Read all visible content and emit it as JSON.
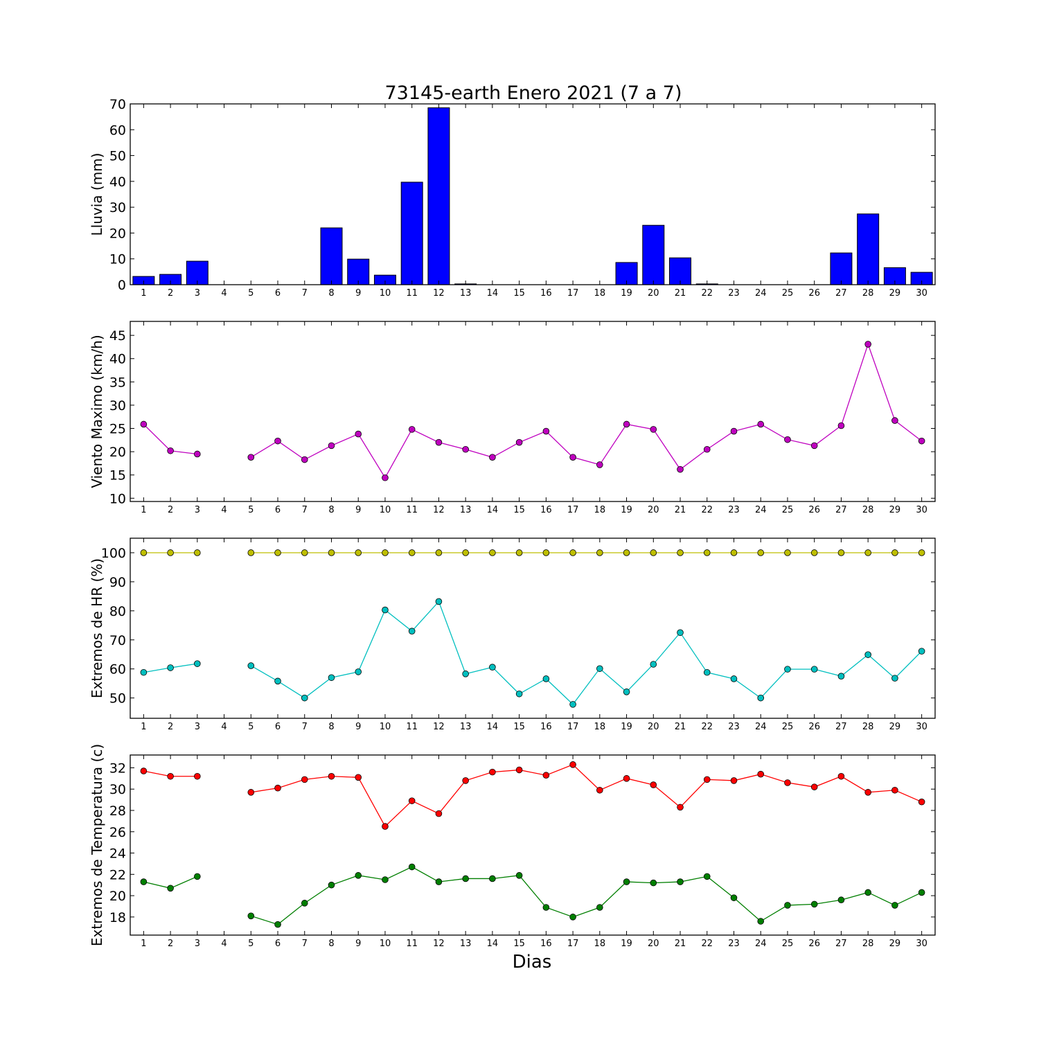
{
  "chart_data": {
    "type": "multi-panel",
    "title": "73145-earth Enero 2021  (7 a 7)",
    "xlabel": "Dias",
    "days": [
      1,
      2,
      3,
      4,
      5,
      6,
      7,
      8,
      9,
      10,
      11,
      12,
      13,
      14,
      15,
      16,
      17,
      18,
      19,
      20,
      21,
      22,
      23,
      24,
      25,
      26,
      27,
      28,
      29,
      30
    ],
    "panels": [
      {
        "type": "bar",
        "ylabel": "Lluvia (mm)",
        "ylim": [
          0,
          70
        ],
        "yticks": [
          0,
          10,
          20,
          30,
          40,
          50,
          60,
          70
        ],
        "series": [
          {
            "color": "#0000ff",
            "values": [
              3.2,
              4.0,
              9.1,
              0,
              0,
              0,
              0,
              22.0,
              9.9,
              3.7,
              39.7,
              68.5,
              0.3,
              0,
              0,
              0,
              0,
              0,
              8.6,
              23.0,
              10.4,
              0.3,
              0,
              0,
              0,
              0,
              12.3,
              27.4,
              6.6,
              4.8
            ]
          }
        ]
      },
      {
        "type": "line",
        "ylabel": "Viento Maximo (km/h)",
        "ylim": [
          9.3,
          48.0
        ],
        "yticks": [
          10,
          15,
          20,
          25,
          30,
          35,
          40,
          45
        ],
        "series": [
          {
            "color": "#bf00bf",
            "values": [
              25.9,
              20.2,
              19.5,
              null,
              18.8,
              22.3,
              18.3,
              21.3,
              23.8,
              14.4,
              24.8,
              22.0,
              20.5,
              18.8,
              22.0,
              24.4,
              18.8,
              17.2,
              25.9,
              24.8,
              16.2,
              20.5,
              24.4,
              25.9,
              22.6,
              21.3,
              25.6,
              43.1,
              26.7,
              22.3
            ]
          }
        ]
      },
      {
        "type": "line",
        "ylabel": "Extremos de HR (%)",
        "ylim": [
          43.0,
          105.0
        ],
        "yticks": [
          50,
          60,
          70,
          80,
          90,
          100
        ],
        "series": [
          {
            "color": "#bfbf00",
            "values": [
              100,
              100,
              100,
              null,
              100,
              100,
              100,
              100,
              100,
              100,
              100,
              100,
              100,
              100,
              100,
              100,
              100,
              100,
              100,
              100,
              100,
              100,
              100,
              100,
              100,
              100,
              100,
              100,
              100,
              100
            ]
          },
          {
            "color": "#00bfbf",
            "values": [
              58.8,
              60.4,
              61.8,
              null,
              61.1,
              55.8,
              50.0,
              57.0,
              59.0,
              80.3,
              73.0,
              83.2,
              58.3,
              60.6,
              51.4,
              56.6,
              47.8,
              60.1,
              52.1,
              61.6,
              72.5,
              58.8,
              56.6,
              50.0,
              59.9,
              59.9,
              57.5,
              64.9,
              56.8,
              66.1
            ]
          }
        ]
      },
      {
        "type": "line",
        "ylabel": "Extremos de Temperatura (c)",
        "ylim": [
          16.3,
          33.2
        ],
        "yticks": [
          18,
          20,
          22,
          24,
          26,
          28,
          30,
          32
        ],
        "series": [
          {
            "color": "#ff0000",
            "values": [
              31.7,
              31.2,
              31.2,
              null,
              29.7,
              30.1,
              30.9,
              31.2,
              31.1,
              26.5,
              28.9,
              27.7,
              30.8,
              31.6,
              31.8,
              31.3,
              32.3,
              29.9,
              31.0,
              30.4,
              28.3,
              30.9,
              30.8,
              31.4,
              30.6,
              30.2,
              31.2,
              29.7,
              29.9,
              28.8
            ]
          },
          {
            "color": "#007f00",
            "values": [
              21.3,
              20.7,
              21.8,
              null,
              18.1,
              17.3,
              19.3,
              21.0,
              21.9,
              21.5,
              22.7,
              21.3,
              21.6,
              21.6,
              21.9,
              18.9,
              18.0,
              18.9,
              21.3,
              21.2,
              21.3,
              21.8,
              19.8,
              17.6,
              19.1,
              19.2,
              19.6,
              20.3,
              19.1,
              20.3
            ]
          }
        ]
      }
    ]
  }
}
